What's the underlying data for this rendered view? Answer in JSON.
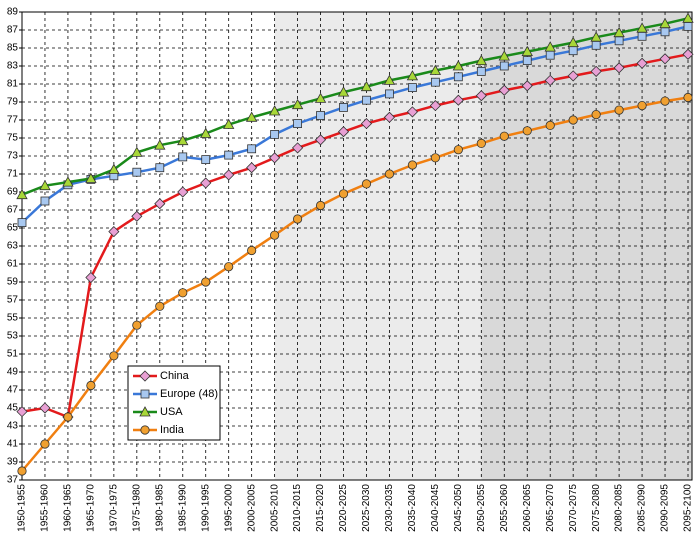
{
  "chart_data": {
    "type": "line",
    "categories": [
      "1950-1955",
      "1955-1960",
      "1960-1965",
      "1965-1970",
      "1970-1975",
      "1975-1980",
      "1980-1985",
      "1985-1990",
      "1990-1995",
      "1995-2000",
      "2000-2005",
      "2005-2010",
      "2010-2015",
      "2015-2020",
      "2020-2025",
      "2025-2030",
      "2030-2035",
      "2035-2040",
      "2040-2045",
      "2045-2050",
      "2050-2055",
      "2055-2060",
      "2060-2065",
      "2065-2070",
      "2070-2075",
      "2075-2080",
      "2080-2085",
      "2085-2090",
      "2090-2095",
      "2095-2100"
    ],
    "series": [
      {
        "name": "China",
        "color": "#e31a1c",
        "marker": "diamond",
        "marker_color": "#e8a0d4",
        "values": [
          44.6,
          45.0,
          44.0,
          59.5,
          64.6,
          66.3,
          67.7,
          69.0,
          70.0,
          70.9,
          71.7,
          72.8,
          73.9,
          74.8,
          75.7,
          76.6,
          77.3,
          77.9,
          78.6,
          79.2,
          79.7,
          80.3,
          80.8,
          81.4,
          81.9,
          82.4,
          82.8,
          83.3,
          83.8,
          84.3
        ]
      },
      {
        "name": "Europe (48)",
        "color": "#3a78d8",
        "marker": "square",
        "marker_color": "#a8c8f0",
        "values": [
          65.6,
          68.0,
          69.8,
          70.4,
          70.8,
          71.2,
          71.7,
          72.9,
          72.6,
          73.1,
          73.8,
          75.4,
          76.6,
          77.5,
          78.4,
          79.2,
          79.9,
          80.6,
          81.2,
          81.8,
          82.4,
          83.0,
          83.6,
          84.2,
          84.7,
          85.3,
          85.8,
          86.3,
          86.8,
          87.4
        ]
      },
      {
        "name": "USA",
        "color": "#1a8a1a",
        "marker": "triangle",
        "marker_color": "#a8d838",
        "values": [
          68.7,
          69.7,
          70.1,
          70.5,
          71.5,
          73.4,
          74.2,
          74.7,
          75.5,
          76.5,
          77.3,
          78.0,
          78.7,
          79.4,
          80.1,
          80.7,
          81.4,
          81.9,
          82.5,
          83.0,
          83.6,
          84.1,
          84.6,
          85.1,
          85.6,
          86.2,
          86.7,
          87.2,
          87.7,
          88.3
        ]
      },
      {
        "name": "India",
        "color": "#f07f10",
        "marker": "circle",
        "marker_color": "#f0a030",
        "values": [
          38.0,
          41.0,
          44.0,
          47.5,
          50.8,
          54.2,
          56.3,
          57.8,
          59.0,
          60.7,
          62.5,
          64.2,
          66.0,
          67.5,
          68.8,
          69.9,
          71.0,
          72.0,
          72.8,
          73.7,
          74.4,
          75.2,
          75.8,
          76.4,
          77.0,
          77.6,
          78.1,
          78.6,
          79.1,
          79.5
        ]
      }
    ],
    "ylim": [
      37,
      89
    ],
    "yticks": [
      37,
      39,
      41,
      43,
      45,
      47,
      49,
      51,
      53,
      55,
      57,
      59,
      61,
      63,
      65,
      67,
      69,
      71,
      73,
      75,
      77,
      79,
      81,
      83,
      85,
      87,
      89
    ],
    "grid": true,
    "shaded_bands": [
      {
        "from": "2005-2010",
        "to": "2050-2055",
        "color": "#ebebeb"
      },
      {
        "from": "2050-2055",
        "to": "2095-2100",
        "color": "#d9d9d9"
      }
    ]
  }
}
